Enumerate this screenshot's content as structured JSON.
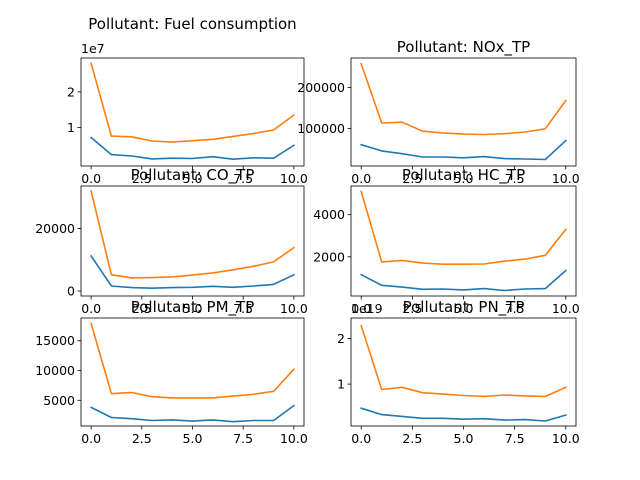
{
  "chart_data": [
    {
      "type": "line",
      "title": "Pollutant: Fuel consumption",
      "x": [
        0,
        1,
        2,
        3,
        4,
        5,
        6,
        7,
        8,
        9,
        10
      ],
      "xticks": [
        0.0,
        2.5,
        5.0,
        7.5,
        10.0
      ],
      "xtick_labels": [
        "0.0",
        "2.5",
        "5.0",
        "7.5",
        "10.0"
      ],
      "xlim": [
        -0.5,
        10.5
      ],
      "ylim": [
        -800000.0,
        29500000.0
      ],
      "yticks": [
        10000000.0,
        20000000.0
      ],
      "ytick_labels": [
        "1",
        "2"
      ],
      "y_offset_label": "1e7",
      "series": [
        {
          "color": "#1f77b4",
          "values": [
            7200000.0,
            2400000.0,
            2000000.0,
            1200000.0,
            1400000.0,
            1300000.0,
            1800000.0,
            1100000.0,
            1500000.0,
            1400000.0,
            5000000.0
          ]
        },
        {
          "color": "#ff7f0e",
          "values": [
            28000000.0,
            7600000.0,
            7400000.0,
            6200000.0,
            5900000.0,
            6300000.0,
            6700000.0,
            7500000.0,
            8300000.0,
            9300000.0,
            13500000.0
          ]
        }
      ]
    },
    {
      "type": "line",
      "title": "Pollutant: NOx_TP",
      "x": [
        0,
        1,
        2,
        3,
        4,
        5,
        6,
        7,
        8,
        9,
        10
      ],
      "xticks": [
        0.0,
        2.5,
        5.0,
        7.5,
        10.0
      ],
      "xtick_labels": [
        "0.0",
        "2.5",
        "5.0",
        "7.5",
        "10.0"
      ],
      "xlim": [
        -0.5,
        10.5
      ],
      "ylim": [
        8000,
        272000
      ],
      "yticks": [
        100000,
        200000
      ],
      "ytick_labels": [
        "100000",
        "200000"
      ],
      "series": [
        {
          "color": "#1f77b4",
          "values": [
            60000,
            45000,
            38000,
            30000,
            30000,
            28000,
            31000,
            26000,
            25000,
            24000,
            70000
          ]
        },
        {
          "color": "#ff7f0e",
          "values": [
            258000,
            113000,
            115000,
            93000,
            89000,
            86000,
            85000,
            87000,
            91000,
            99000,
            168000
          ]
        }
      ]
    },
    {
      "type": "line",
      "title": "Pollutant: CO_TP",
      "x": [
        0,
        1,
        2,
        3,
        4,
        5,
        6,
        7,
        8,
        9,
        10
      ],
      "xticks": [
        0.0,
        2.5,
        5.0,
        7.5,
        10.0
      ],
      "xtick_labels": [
        "0.0",
        "2.5",
        "5.0",
        "7.5",
        "10.0"
      ],
      "xlim": [
        -0.5,
        10.5
      ],
      "ylim": [
        -1600,
        33600
      ],
      "yticks": [
        0,
        20000
      ],
      "ytick_labels": [
        "0",
        "20000"
      ],
      "series": [
        {
          "color": "#1f77b4",
          "values": [
            11200,
            1600,
            1100,
            900,
            1100,
            1200,
            1500,
            1200,
            1600,
            2100,
            5200
          ]
        },
        {
          "color": "#ff7f0e",
          "values": [
            32000,
            5200,
            4200,
            4300,
            4500,
            5100,
            5800,
            6800,
            7900,
            9300,
            13900
          ]
        }
      ]
    },
    {
      "type": "line",
      "title": "Pollutant: HC_TP",
      "x": [
        0,
        1,
        2,
        3,
        4,
        5,
        6,
        7,
        8,
        9,
        10
      ],
      "xticks": [
        0.0,
        2.5,
        5.0,
        7.5,
        10.0
      ],
      "xtick_labels": [
        "0.0",
        "2.5",
        "5.0",
        "7.5",
        "10.0"
      ],
      "xlim": [
        -0.5,
        10.5
      ],
      "ylim": [
        140,
        5360
      ],
      "yticks": [
        2000,
        4000
      ],
      "ytick_labels": [
        "2000",
        "4000"
      ],
      "series": [
        {
          "color": "#1f77b4",
          "values": [
            1150,
            650,
            560,
            460,
            470,
            430,
            490,
            400,
            470,
            490,
            1350
          ]
        },
        {
          "color": "#ff7f0e",
          "values": [
            5100,
            1760,
            1830,
            1700,
            1650,
            1650,
            1660,
            1790,
            1890,
            2070,
            3300
          ]
        }
      ]
    },
    {
      "type": "line",
      "title": "Pollutant: PM_TP",
      "x": [
        0,
        1,
        2,
        3,
        4,
        5,
        6,
        7,
        8,
        9,
        10
      ],
      "xticks": [
        0.0,
        2.5,
        5.0,
        7.5,
        10.0
      ],
      "xtick_labels": [
        "0.0",
        "2.5",
        "5.0",
        "7.5",
        "10.0"
      ],
      "xlim": [
        -0.5,
        10.5
      ],
      "ylim": [
        680,
        18820
      ],
      "yticks": [
        5000,
        10000,
        15000
      ],
      "ytick_labels": [
        "5000",
        "10000",
        "15000"
      ],
      "series": [
        {
          "color": "#1f77b4",
          "values": [
            3800,
            2100,
            1900,
            1600,
            1700,
            1500,
            1700,
            1400,
            1600,
            1600,
            4100
          ]
        },
        {
          "color": "#ff7f0e",
          "values": [
            17900,
            6100,
            6300,
            5600,
            5400,
            5400,
            5400,
            5700,
            6000,
            6500,
            10200
          ]
        }
      ]
    },
    {
      "type": "line",
      "title": "Pollutant: PN_TP",
      "x": [
        0,
        1,
        2,
        3,
        4,
        5,
        6,
        7,
        8,
        9,
        10
      ],
      "xticks": [
        0.0,
        2.5,
        5.0,
        7.5,
        10.0
      ],
      "xtick_labels": [
        "0.0",
        "2.5",
        "5.0",
        "7.5",
        "10.0"
      ],
      "xlim": [
        -0.5,
        10.5
      ],
      "ylim": [
        8e+17,
        2.45e+19
      ],
      "yticks": [
        1e+19,
        2e+19
      ],
      "ytick_labels": [
        "1",
        "2"
      ],
      "y_offset_label": "1e19",
      "series": [
        {
          "color": "#1f77b4",
          "values": [
            4.7e+18,
            3.3e+18,
            2.9e+18,
            2.5e+18,
            2.5e+18,
            2.3e+18,
            2.4e+18,
            2.1e+18,
            2.2e+18,
            1.9e+18,
            3.2e+18
          ]
        },
        {
          "color": "#ff7f0e",
          "values": [
            2.28e+19,
            8.8e+18,
            9.3e+18,
            8.1e+18,
            7.8e+18,
            7.5e+18,
            7.3e+18,
            7.6e+18,
            7.4e+18,
            7.3e+18,
            9.3e+18
          ]
        }
      ]
    }
  ]
}
